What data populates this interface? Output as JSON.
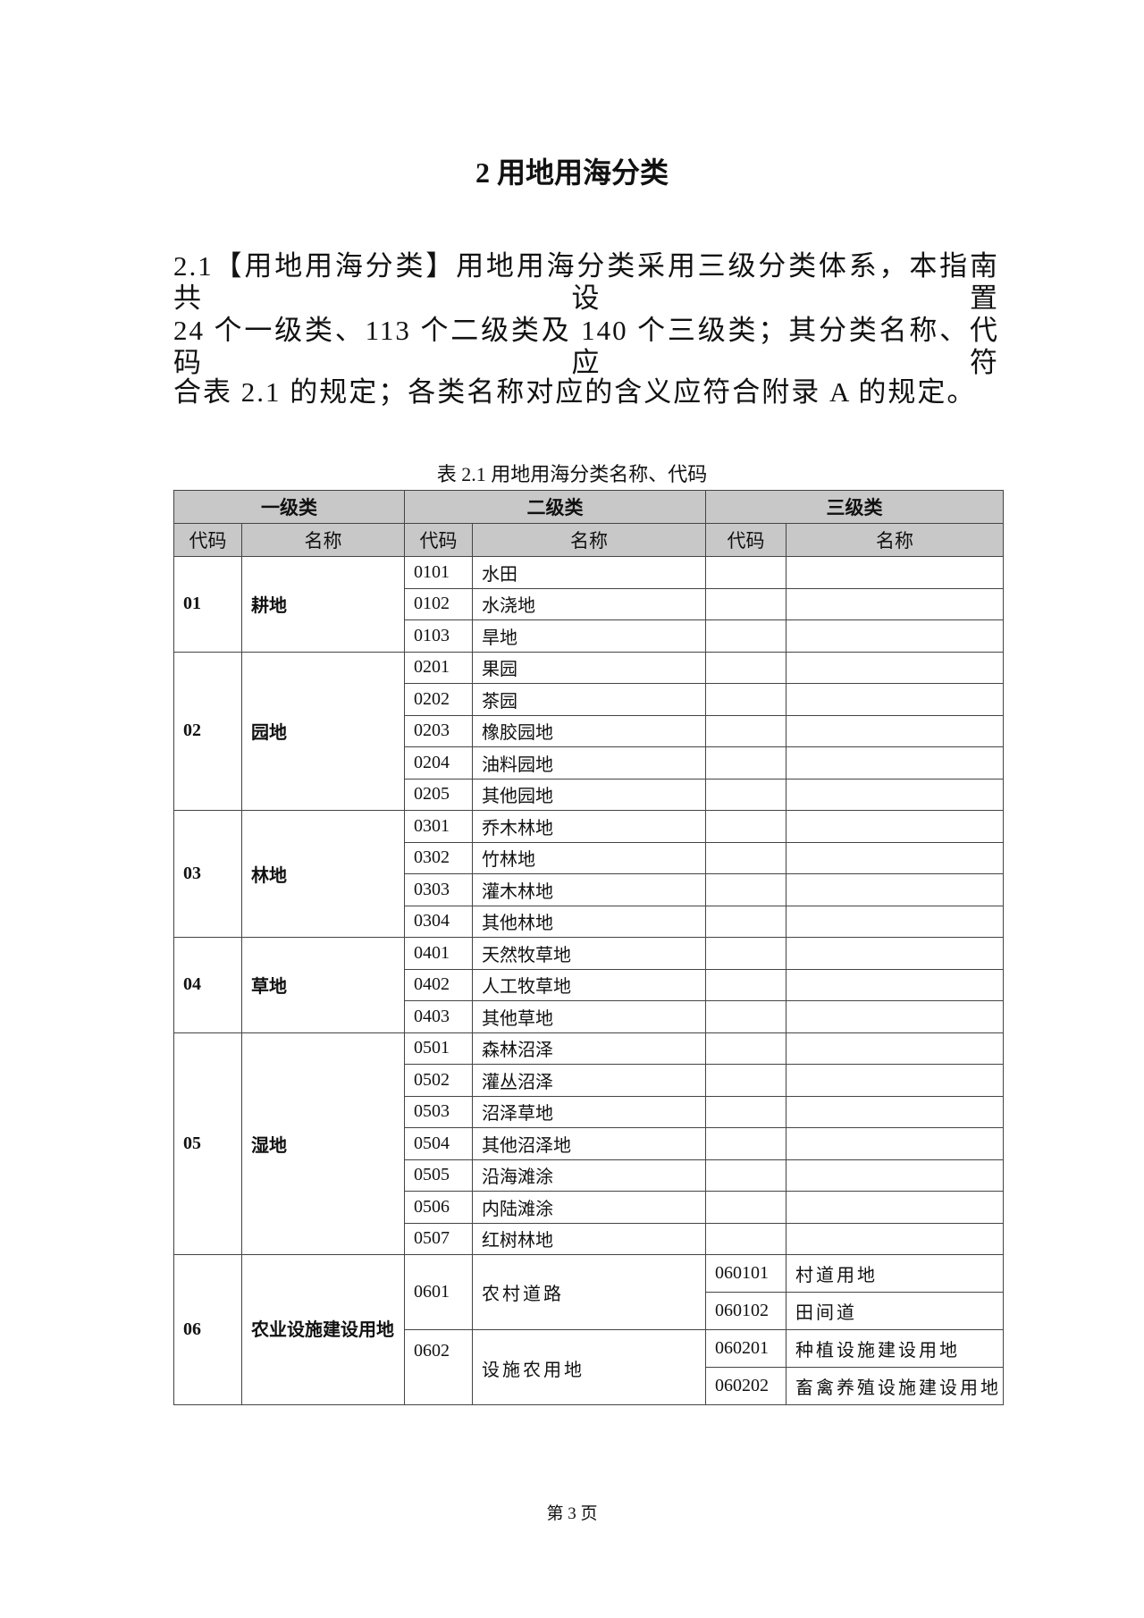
{
  "title": "2 用地用海分类",
  "paragraph": {
    "label": "2.1【用地用海分类】",
    "lines": [
      "用地用海分类采用三级分类体系，本指南共设置",
      "24 个一级类、113 个二级类及 140 个三级类；其分类名称、代码应符",
      "合表 2.1 的规定；各类名称对应的含义应符合附录 A 的规定。"
    ]
  },
  "table": {
    "caption": "表 2.1 用地用海分类名称、代码",
    "group_headers": [
      "一级类",
      "二级类",
      "三级类"
    ],
    "sub_headers": [
      "代码",
      "名称",
      "代码",
      "名称",
      "代码",
      "名称"
    ],
    "groups": [
      {
        "code": "01",
        "name": "耕地",
        "items": [
          [
            "0101",
            "水田"
          ],
          [
            "0102",
            "水浇地"
          ],
          [
            "0103",
            "旱地"
          ]
        ]
      },
      {
        "code": "02",
        "name": "园地",
        "items": [
          [
            "0201",
            "果园"
          ],
          [
            "0202",
            "茶园"
          ],
          [
            "0203",
            "橡胶园地"
          ],
          [
            "0204",
            "油料园地"
          ],
          [
            "0205",
            "其他园地"
          ]
        ]
      },
      {
        "code": "03",
        "name": "林地",
        "items": [
          [
            "0301",
            "乔木林地"
          ],
          [
            "0302",
            "竹林地"
          ],
          [
            "0303",
            "灌木林地"
          ],
          [
            "0304",
            "其他林地"
          ]
        ]
      },
      {
        "code": "04",
        "name": "草地",
        "items": [
          [
            "0401",
            "天然牧草地"
          ],
          [
            "0402",
            "人工牧草地"
          ],
          [
            "0403",
            "其他草地"
          ]
        ]
      },
      {
        "code": "05",
        "name": "湿地",
        "items": [
          [
            "0501",
            "森林沼泽"
          ],
          [
            "0502",
            "灌丛沼泽"
          ],
          [
            "0503",
            "沼泽草地"
          ],
          [
            "0504",
            "其他沼泽地"
          ],
          [
            "0505",
            "沿海滩涂"
          ],
          [
            "0506",
            "内陆滩涂"
          ],
          [
            "0507",
            "红树林地"
          ]
        ]
      }
    ],
    "group_06": {
      "code": "06",
      "name": "农业设施建设用地",
      "items": [
        {
          "code": "0601",
          "name": "农村道路",
          "sub": [
            [
              "060101",
              "村道用地"
            ],
            [
              "060102",
              "田间道"
            ]
          ]
        },
        {
          "code": "0602",
          "name": "设施农用地",
          "sub": [
            [
              "060201",
              "种植设施建设用地"
            ],
            [
              "060202",
              "畜禽养殖设施建设用地"
            ]
          ]
        }
      ]
    }
  },
  "footer": "第 3 页"
}
